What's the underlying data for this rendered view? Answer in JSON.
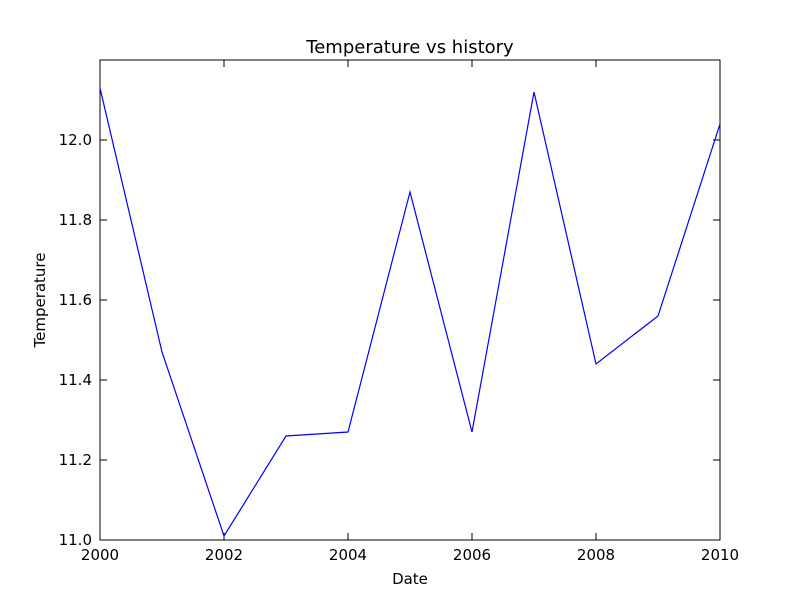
{
  "chart_data": {
    "type": "line",
    "title": "Temperature vs history",
    "xlabel": "Date",
    "ylabel": "Temperature",
    "xlim": [
      2000,
      2010
    ],
    "ylim": [
      11.0,
      12.2
    ],
    "x_ticks": [
      2000,
      2002,
      2004,
      2006,
      2008,
      2010
    ],
    "x_tick_labels": [
      "2000",
      "2002",
      "2004",
      "2006",
      "2008",
      "2010"
    ],
    "y_ticks": [
      11.0,
      11.2,
      11.4,
      11.6,
      11.8,
      12.0
    ],
    "y_tick_labels": [
      "11.0",
      "11.2",
      "11.4",
      "11.6",
      "11.8",
      "12.0"
    ],
    "grid": false,
    "legend": "none",
    "series": [
      {
        "color": "#0000ff",
        "x": [
          2000,
          2001,
          2002,
          2003,
          2004,
          2005,
          2006,
          2007,
          2008,
          2009,
          2010
        ],
        "y": [
          12.13,
          11.47,
          11.01,
          11.26,
          11.27,
          11.87,
          11.27,
          12.12,
          11.44,
          11.56,
          12.04
        ]
      }
    ]
  }
}
